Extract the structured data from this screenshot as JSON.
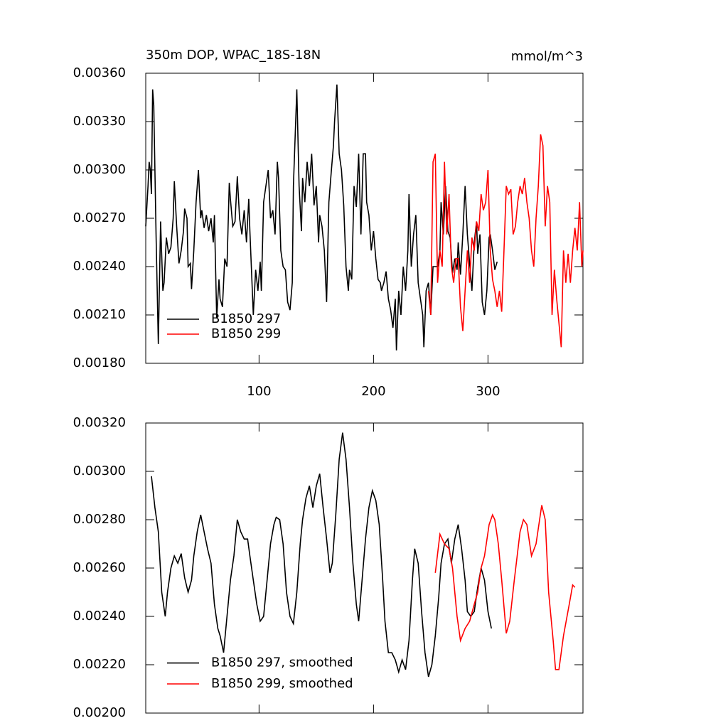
{
  "chart_data": [
    {
      "type": "line",
      "title": "350m DOP, WPAC_18S-18N",
      "units": "mmol/m^3",
      "legend": "lower left",
      "xlim": [
        1,
        383
      ],
      "xticks": [
        100,
        200,
        300
      ],
      "ylim": [
        0.0018,
        0.0036
      ],
      "yticks": [
        {
          "value": 0.0018,
          "label": "0.00180"
        },
        {
          "value": 0.0021,
          "label": "0.00210"
        },
        {
          "value": 0.0024,
          "label": "0.00240"
        },
        {
          "value": 0.0027,
          "label": "0.00270"
        },
        {
          "value": 0.003,
          "label": "0.00300"
        },
        {
          "value": 0.0033,
          "label": "0.00330"
        },
        {
          "value": 0.0036,
          "label": "0.00360"
        }
      ],
      "series": [
        {
          "name": "B1850 297",
          "color": "#000000",
          "x": [
            1,
            3,
            4,
            5,
            6,
            7,
            8,
            10,
            12,
            14,
            16,
            17,
            19,
            21,
            23,
            25,
            26,
            28,
            30,
            32,
            34,
            35,
            37,
            38,
            40,
            41,
            43,
            45,
            47,
            49,
            50,
            52,
            54,
            56,
            58,
            60,
            61,
            63,
            65,
            66,
            68,
            70,
            72,
            74,
            75,
            77,
            79,
            81,
            83,
            85,
            87,
            89,
            91,
            92,
            95,
            97,
            99,
            101,
            102,
            104,
            106,
            108,
            110,
            112,
            114,
            116,
            117,
            119,
            121,
            123,
            125,
            127,
            129,
            130,
            133,
            135,
            137,
            138,
            140,
            142,
            144,
            146,
            148,
            150,
            152,
            153,
            155,
            157,
            159,
            161,
            163,
            165,
            166,
            168,
            170,
            172,
            174,
            176,
            178,
            179,
            181,
            183,
            185,
            187,
            189,
            191,
            193,
            194,
            196,
            198,
            200,
            202,
            204,
            206,
            207,
            209,
            211,
            213,
            215,
            217,
            219,
            220,
            222,
            224,
            226,
            228,
            230,
            231,
            233,
            235,
            237,
            239,
            241,
            243,
            244,
            246,
            248,
            250,
            252,
            254,
            256,
            258,
            259,
            261,
            263,
            265,
            267,
            269,
            271,
            273,
            274,
            276,
            278,
            280,
            282,
            284,
            286,
            288,
            290,
            291,
            293,
            295,
            297,
            299,
            301,
            302,
            304,
            306,
            308
          ],
          "values": [
            0.00265,
            0.0029,
            0.00305,
            0.003,
            0.00285,
            0.0035,
            0.0034,
            0.0026,
            0.00192,
            0.00268,
            0.00225,
            0.0023,
            0.00258,
            0.00248,
            0.00252,
            0.0027,
            0.00293,
            0.00265,
            0.00242,
            0.0025,
            0.00262,
            0.00276,
            0.0027,
            0.0024,
            0.00242,
            0.00226,
            0.0025,
            0.0028,
            0.003,
            0.0027,
            0.00275,
            0.00264,
            0.00272,
            0.00262,
            0.0027,
            0.00255,
            0.00272,
            0.00208,
            0.00232,
            0.0022,
            0.00215,
            0.00245,
            0.0024,
            0.00292,
            0.00282,
            0.00265,
            0.00268,
            0.00296,
            0.0027,
            0.0026,
            0.00275,
            0.00255,
            0.00282,
            0.00262,
            0.0021,
            0.00238,
            0.00225,
            0.00243,
            0.00225,
            0.0028,
            0.0029,
            0.003,
            0.0027,
            0.00275,
            0.0026,
            0.00305,
            0.00295,
            0.0025,
            0.0024,
            0.00238,
            0.00218,
            0.00213,
            0.0023,
            0.0029,
            0.0035,
            0.0029,
            0.00262,
            0.00295,
            0.0028,
            0.00305,
            0.0029,
            0.0031,
            0.00278,
            0.0029,
            0.00255,
            0.00272,
            0.00265,
            0.0025,
            0.00218,
            0.0028,
            0.00298,
            0.00315,
            0.0033,
            0.00353,
            0.0031,
            0.003,
            0.00278,
            0.0024,
            0.00225,
            0.00238,
            0.00232,
            0.0029,
            0.00277,
            0.0031,
            0.0026,
            0.0031,
            0.0031,
            0.0028,
            0.00272,
            0.0025,
            0.00262,
            0.00245,
            0.00232,
            0.0023,
            0.00225,
            0.0023,
            0.00237,
            0.0022,
            0.00213,
            0.00202,
            0.0022,
            0.00188,
            0.00225,
            0.0021,
            0.0024,
            0.00225,
            0.0025,
            0.00285,
            0.0024,
            0.0026,
            0.00272,
            0.0023,
            0.0022,
            0.0021,
            0.0019,
            0.00225,
            0.0023,
            0.0021,
            0.0024,
            0.0024,
            0.0024,
            0.0025,
            0.0028,
            0.0026,
            0.0029,
            0.00262,
            0.00258,
            0.00236,
            0.00245,
            0.00238,
            0.00255,
            0.00235,
            0.0026,
            0.0029,
            0.0026,
            0.00242,
            0.00225,
            0.00255,
            0.00268,
            0.00248,
            0.0026,
            0.00218,
            0.0021,
            0.00225,
            0.00258,
            0.0026,
            0.0025,
            0.00238,
            0.00243
          ]
        },
        {
          "name": "B1850 299",
          "color": "#ff0000",
          "x": [
            248,
            250,
            252,
            254,
            256,
            258,
            260,
            262,
            264,
            266,
            268,
            270,
            272,
            274,
            276,
            278,
            280,
            282,
            284,
            286,
            288,
            290,
            292,
            294,
            296,
            298,
            300,
            302,
            304,
            306,
            308,
            310,
            312,
            314,
            316,
            318,
            320,
            322,
            324,
            326,
            328,
            330,
            332,
            334,
            336,
            338,
            340,
            342,
            344,
            346,
            348,
            350,
            352,
            354,
            356,
            358,
            360,
            362,
            364,
            366,
            368,
            370,
            372,
            374,
            376,
            378,
            380,
            382,
            383
          ],
          "values": [
            0.00225,
            0.0021,
            0.00305,
            0.0031,
            0.0023,
            0.0025,
            0.0024,
            0.00305,
            0.0026,
            0.00285,
            0.0024,
            0.0023,
            0.00245,
            0.00245,
            0.00215,
            0.002,
            0.00225,
            0.0025,
            0.0023,
            0.00258,
            0.0025,
            0.00268,
            0.00262,
            0.00285,
            0.00275,
            0.0028,
            0.003,
            0.0025,
            0.00232,
            0.00225,
            0.00215,
            0.00225,
            0.00212,
            0.0025,
            0.0029,
            0.00285,
            0.00288,
            0.0026,
            0.00265,
            0.0028,
            0.0029,
            0.00285,
            0.00295,
            0.0028,
            0.0027,
            0.0025,
            0.0024,
            0.0027,
            0.0029,
            0.00322,
            0.00315,
            0.00265,
            0.0029,
            0.0028,
            0.0021,
            0.00238,
            0.0022,
            0.00205,
            0.0019,
            0.0025,
            0.0023,
            0.00248,
            0.0023,
            0.0025,
            0.00264,
            0.0025,
            0.0028,
            0.0024,
            0.0025
          ]
        }
      ]
    },
    {
      "type": "line",
      "legend": "lower left",
      "xlim": [
        1,
        383
      ],
      "ylim": [
        0.002,
        0.0032
      ],
      "yticks": [
        {
          "value": 0.002,
          "label": "0.00200"
        },
        {
          "value": 0.0022,
          "label": "0.00220"
        },
        {
          "value": 0.0024,
          "label": "0.00240"
        },
        {
          "value": 0.0026,
          "label": "0.00260"
        },
        {
          "value": 0.0028,
          "label": "0.00280"
        },
        {
          "value": 0.003,
          "label": "0.00300"
        },
        {
          "value": 0.0032,
          "label": "0.00320"
        }
      ],
      "series": [
        {
          "name": "B1850 297, smoothed",
          "color": "#000000",
          "x": [
            6,
            9,
            12,
            15,
            18,
            20,
            23,
            26,
            29,
            32,
            35,
            38,
            41,
            43,
            46,
            49,
            52,
            55,
            58,
            61,
            64,
            66,
            69,
            72,
            75,
            78,
            81,
            84,
            87,
            90,
            92,
            95,
            98,
            101,
            104,
            107,
            110,
            113,
            115,
            118,
            121,
            124,
            127,
            130,
            133,
            136,
            138,
            141,
            144,
            147,
            150,
            153,
            156,
            159,
            162,
            164,
            167,
            170,
            173,
            176,
            179,
            182,
            185,
            187,
            190,
            193,
            196,
            199,
            202,
            205,
            208,
            210,
            213,
            216,
            219,
            222,
            225,
            228,
            231,
            234,
            236,
            239,
            242,
            245,
            248,
            251,
            254,
            257,
            259,
            262,
            265,
            268,
            271,
            274,
            277,
            280,
            282,
            285,
            288,
            291,
            294,
            297,
            300,
            303
          ],
          "values": [
            0.00298,
            0.00285,
            0.00275,
            0.0025,
            0.0024,
            0.0025,
            0.0026,
            0.00265,
            0.00262,
            0.00266,
            0.00256,
            0.0025,
            0.00255,
            0.00265,
            0.00275,
            0.00282,
            0.00275,
            0.00268,
            0.00262,
            0.00245,
            0.00235,
            0.00232,
            0.00225,
            0.0024,
            0.00255,
            0.00265,
            0.0028,
            0.00275,
            0.00272,
            0.00272,
            0.00265,
            0.00255,
            0.00245,
            0.00238,
            0.0024,
            0.00255,
            0.0027,
            0.00278,
            0.00281,
            0.0028,
            0.0027,
            0.0025,
            0.0024,
            0.00237,
            0.0025,
            0.0027,
            0.0028,
            0.00289,
            0.00294,
            0.00285,
            0.00294,
            0.00299,
            0.00285,
            0.00272,
            0.00258,
            0.00262,
            0.00282,
            0.00305,
            0.00316,
            0.00305,
            0.00285,
            0.00262,
            0.00245,
            0.00238,
            0.00255,
            0.00272,
            0.00285,
            0.00292,
            0.00288,
            0.00278,
            0.00255,
            0.00238,
            0.00225,
            0.00225,
            0.00222,
            0.00217,
            0.00222,
            0.00218,
            0.0023,
            0.00255,
            0.00268,
            0.00262,
            0.00242,
            0.00225,
            0.00215,
            0.0022,
            0.00232,
            0.00248,
            0.00262,
            0.0027,
            0.00272,
            0.00262,
            0.00272,
            0.00278,
            0.00268,
            0.00255,
            0.00242,
            0.0024,
            0.00242,
            0.00252,
            0.0026,
            0.00255,
            0.00242,
            0.00235
          ]
        },
        {
          "name": "B1850 299, smoothed",
          "color": "#ff0000",
          "x": [
            254,
            258,
            262,
            266,
            269,
            273,
            276,
            280,
            284,
            288,
            291,
            294,
            297,
            301,
            304,
            306,
            309,
            312,
            316,
            319,
            323,
            328,
            331,
            334,
            338,
            342,
            347,
            350,
            353,
            357,
            359,
            362,
            366,
            371,
            374,
            376
          ],
          "values": [
            0.00258,
            0.00274,
            0.0027,
            0.00268,
            0.0026,
            0.0024,
            0.0023,
            0.00235,
            0.00238,
            0.00245,
            0.0025,
            0.0026,
            0.00265,
            0.00278,
            0.00282,
            0.0028,
            0.0027,
            0.00255,
            0.00233,
            0.00238,
            0.00255,
            0.00275,
            0.0028,
            0.00278,
            0.00265,
            0.0027,
            0.00286,
            0.0028,
            0.0025,
            0.0023,
            0.00218,
            0.00218,
            0.00232,
            0.00245,
            0.00253,
            0.00252
          ]
        }
      ]
    }
  ]
}
